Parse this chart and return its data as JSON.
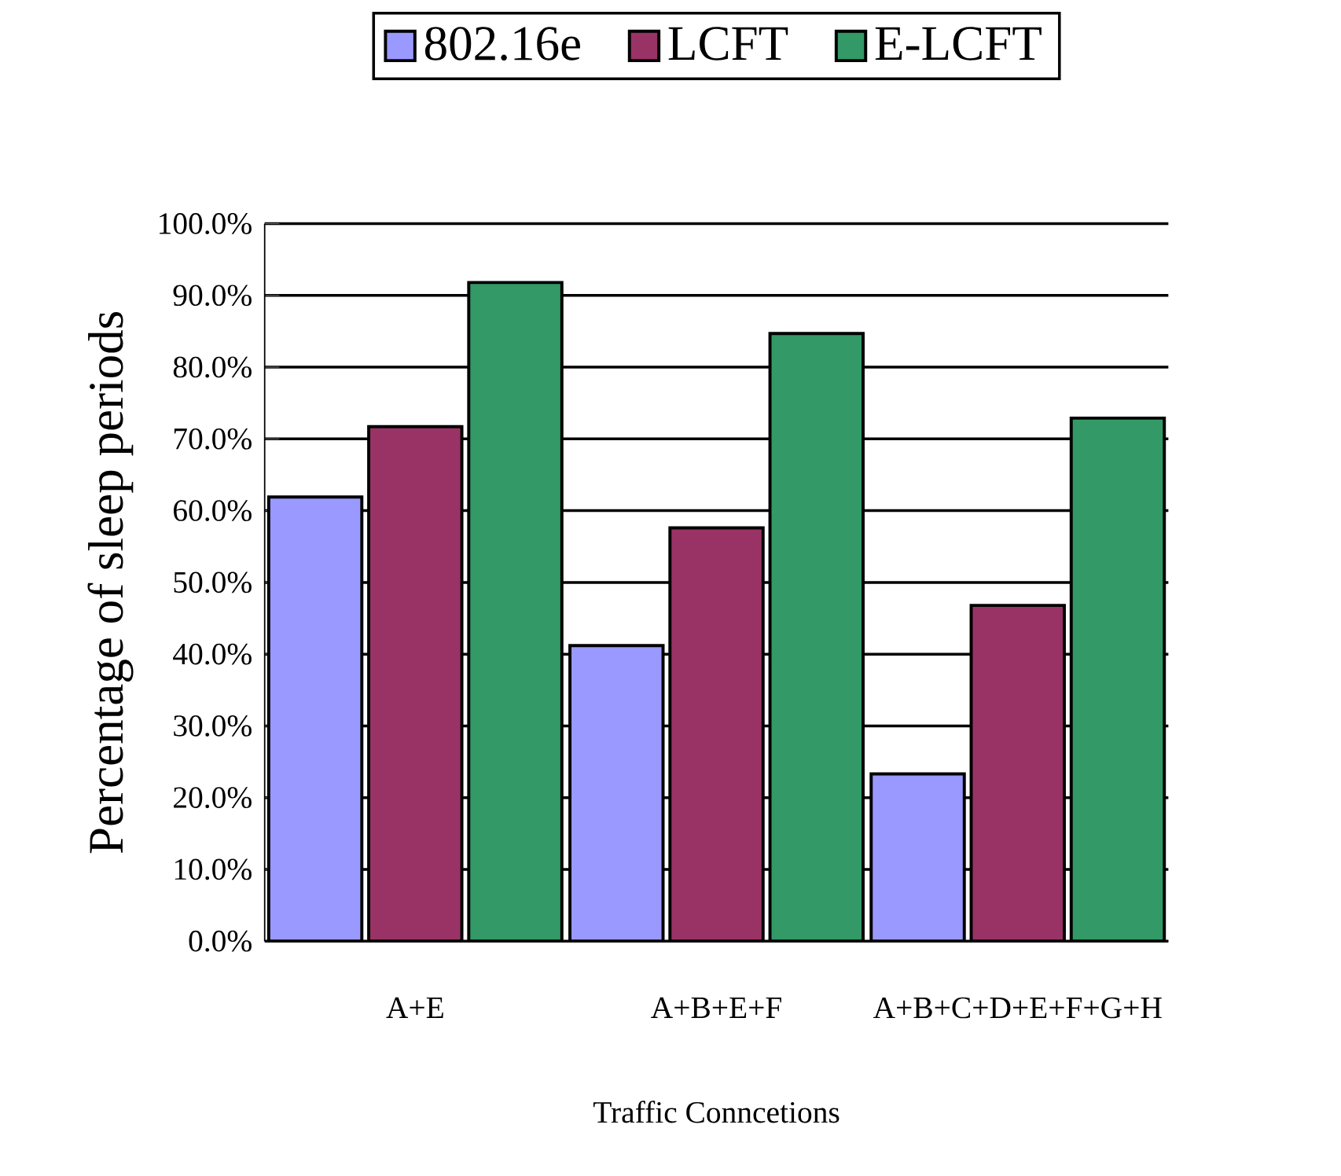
{
  "chart_data": {
    "type": "bar",
    "xlabel": "Traffic Conncetions",
    "ylabel": "Percentage of sleep periods",
    "categories": [
      "A+E",
      "A+B+E+F",
      "A+B+C+D+E+F+G+H"
    ],
    "series": [
      {
        "name": "802.16e",
        "color": "#9999ff",
        "values": [
          61.9,
          41.2,
          23.3
        ]
      },
      {
        "name": "LCFT",
        "color": "#993366",
        "values": [
          71.7,
          57.6,
          46.8
        ]
      },
      {
        "name": "E-LCFT",
        "color": "#339966",
        "values": [
          91.8,
          84.7,
          72.9
        ]
      }
    ],
    "ylim": [
      0,
      100
    ],
    "yticks": [
      {
        "value": 0,
        "label": "0.0%"
      },
      {
        "value": 10,
        "label": "10.0%"
      },
      {
        "value": 20,
        "label": "20.0%"
      },
      {
        "value": 30,
        "label": "30.0%"
      },
      {
        "value": 40,
        "label": "40.0%"
      },
      {
        "value": 50,
        "label": "50.0%"
      },
      {
        "value": 60,
        "label": "60.0%"
      },
      {
        "value": 70,
        "label": "70.0%"
      },
      {
        "value": 80,
        "label": "80.0%"
      },
      {
        "value": 90,
        "label": "90.0%"
      },
      {
        "value": 100,
        "label": "100.0%"
      }
    ],
    "grid": "y",
    "legend": "top"
  }
}
